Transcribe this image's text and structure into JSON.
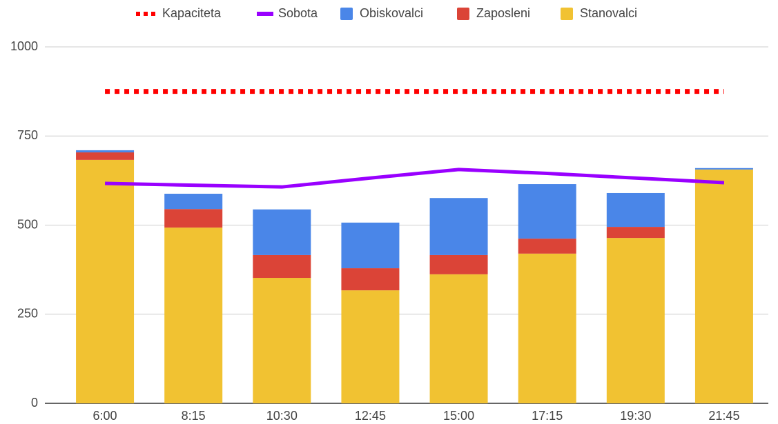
{
  "chart_data": {
    "type": "bar",
    "stacked": true,
    "categories": [
      "6:00",
      "8:15",
      "10:30",
      "12:45",
      "15:00",
      "17:15",
      "19:30",
      "21:45"
    ],
    "series": [
      {
        "name": "Kapaciteta",
        "type": "line",
        "style": "dotted",
        "color": "#ff0000",
        "values": [
          875,
          875,
          875,
          875,
          875,
          875,
          875,
          875
        ]
      },
      {
        "name": "Sobota",
        "type": "line",
        "style": "solid",
        "color": "#9900ff",
        "values": [
          617,
          612,
          607,
          632,
          656,
          645,
          632,
          619
        ]
      },
      {
        "name": "Obiskovalci",
        "type": "bar",
        "color": "#4a86e8",
        "values": [
          6,
          43,
          128,
          128,
          160,
          153,
          95,
          4
        ]
      },
      {
        "name": "Zaposleni",
        "type": "bar",
        "color": "#db4437",
        "values": [
          21,
          52,
          64,
          62,
          54,
          42,
          31,
          0
        ]
      },
      {
        "name": "Stanovalci",
        "type": "bar",
        "color": "#f1c232",
        "values": [
          683,
          493,
          352,
          317,
          362,
          420,
          464,
          656
        ]
      }
    ],
    "ylim": [
      0,
      1000
    ],
    "yticks": [
      0,
      250,
      500,
      750,
      1000
    ],
    "grid": true,
    "legend": "top"
  }
}
